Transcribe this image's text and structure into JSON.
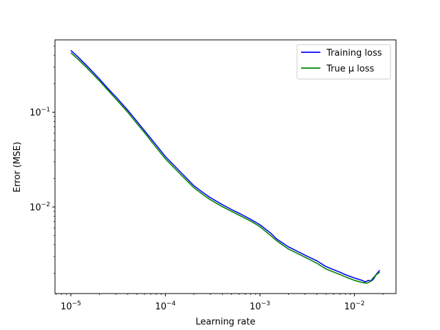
{
  "chart_data": {
    "type": "line",
    "title": "",
    "xlabel": "Learning rate",
    "ylabel": "Error (MSE)",
    "xscale": "log",
    "yscale": "log",
    "xlim": [
      6.8e-06,
      0.0275
    ],
    "ylim": [
      0.00122,
      0.58
    ],
    "grid": false,
    "legend_position": "top-right",
    "x_ticks": [
      {
        "value": 1e-05,
        "base": "10",
        "exp": "−5"
      },
      {
        "value": 0.0001,
        "base": "10",
        "exp": "−4"
      },
      {
        "value": 0.001,
        "base": "10",
        "exp": "−3"
      },
      {
        "value": 0.01,
        "base": "10",
        "exp": "−2"
      }
    ],
    "y_ticks": [
      {
        "value": 0.01,
        "base": "10",
        "exp": "−2"
      },
      {
        "value": 0.1,
        "base": "10",
        "exp": "−1"
      }
    ],
    "series": [
      {
        "name": "Training loss",
        "color": "#0000ff",
        "points": [
          [
            1e-05,
            0.45
          ],
          [
            1.2e-05,
            0.38
          ],
          [
            1.5e-05,
            0.305
          ],
          [
            2e-05,
            0.225
          ],
          [
            2.5e-05,
            0.175
          ],
          [
            3e-05,
            0.145
          ],
          [
            4e-05,
            0.105
          ],
          [
            5e-05,
            0.08
          ],
          [
            6e-05,
            0.064
          ],
          [
            8e-05,
            0.045
          ],
          [
            0.0001,
            0.034
          ],
          [
            0.00015,
            0.0225
          ],
          [
            0.0002,
            0.0168
          ],
          [
            0.00025,
            0.0142
          ],
          [
            0.0003,
            0.0125
          ],
          [
            0.0004,
            0.0106
          ],
          [
            0.0005,
            0.0094
          ],
          [
            0.0006,
            0.0086
          ],
          [
            0.0008,
            0.0074
          ],
          [
            0.001,
            0.0065
          ],
          [
            0.0013,
            0.0053
          ],
          [
            0.0015,
            0.0046
          ],
          [
            0.002,
            0.0038
          ],
          [
            0.003,
            0.0031
          ],
          [
            0.004,
            0.0027
          ],
          [
            0.005,
            0.00235
          ],
          [
            0.006,
            0.00218
          ],
          [
            0.007,
            0.00205
          ],
          [
            0.008,
            0.00193
          ],
          [
            0.01,
            0.00178
          ],
          [
            0.012,
            0.00168
          ],
          [
            0.013,
            0.00162
          ],
          [
            0.014,
            0.00168
          ],
          [
            0.015,
            0.00165
          ],
          [
            0.016,
            0.00175
          ],
          [
            0.017,
            0.00195
          ],
          [
            0.018,
            0.00208
          ],
          [
            0.0185,
            0.00215
          ]
        ]
      },
      {
        "name": "True μ loss",
        "color": "#008000",
        "points": [
          [
            1e-05,
            0.425
          ],
          [
            1.2e-05,
            0.36
          ],
          [
            1.5e-05,
            0.29
          ],
          [
            2e-05,
            0.215
          ],
          [
            2.5e-05,
            0.168
          ],
          [
            3e-05,
            0.138
          ],
          [
            4e-05,
            0.1
          ],
          [
            5e-05,
            0.076
          ],
          [
            6e-05,
            0.061
          ],
          [
            8e-05,
            0.0425
          ],
          [
            0.0001,
            0.0322
          ],
          [
            0.00015,
            0.0213
          ],
          [
            0.0002,
            0.016
          ],
          [
            0.00025,
            0.0135
          ],
          [
            0.0003,
            0.0119
          ],
          [
            0.0004,
            0.0101
          ],
          [
            0.0005,
            0.009
          ],
          [
            0.0006,
            0.0082
          ],
          [
            0.0008,
            0.0071
          ],
          [
            0.001,
            0.0062
          ],
          [
            0.0013,
            0.005
          ],
          [
            0.0015,
            0.0044
          ],
          [
            0.002,
            0.0036
          ],
          [
            0.003,
            0.00295
          ],
          [
            0.004,
            0.00255
          ],
          [
            0.005,
            0.00222
          ],
          [
            0.006,
            0.00206
          ],
          [
            0.007,
            0.00194
          ],
          [
            0.008,
            0.00183
          ],
          [
            0.01,
            0.00168
          ],
          [
            0.012,
            0.0016
          ],
          [
            0.0135,
            0.00157
          ],
          [
            0.0145,
            0.00162
          ],
          [
            0.0155,
            0.00175
          ],
          [
            0.0165,
            0.00188
          ],
          [
            0.0175,
            0.00197
          ],
          [
            0.0185,
            0.00205
          ]
        ]
      }
    ]
  }
}
